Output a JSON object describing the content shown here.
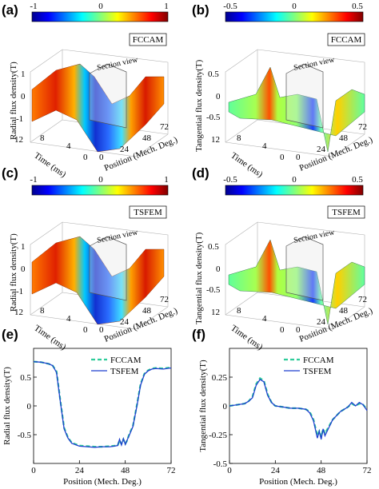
{
  "panels": {
    "a": {
      "label": "(a)",
      "method": "FCCAM",
      "colorbar_ticks": [
        "-1",
        "0",
        "1"
      ],
      "section": "Section view",
      "zlabel": "Radial flux density(T)",
      "ylabel": "Time (ms)",
      "xlabel": "Position (Mech. Deg.)",
      "zticks": [
        "1",
        "0",
        "-1"
      ],
      "yticks": [
        "12",
        "8",
        "4",
        "0"
      ],
      "xticks": [
        "0",
        "24",
        "48",
        "72"
      ]
    },
    "b": {
      "label": "(b)",
      "method": "FCCAM",
      "colorbar_ticks": [
        "-0.5",
        "0",
        "0.5"
      ],
      "section": "Section view",
      "zlabel": "Tangential flux density(T)",
      "ylabel": "Time (ms)",
      "xlabel": "Position (Mech. Deg.)",
      "zticks": [
        "0.5",
        "0",
        "-0.5"
      ],
      "yticks": [
        "12",
        "8",
        "4",
        "0"
      ],
      "xticks": [
        "0",
        "24",
        "48",
        "72"
      ]
    },
    "c": {
      "label": "(c)",
      "method": "TSFEM",
      "colorbar_ticks": [
        "-1",
        "0",
        "1"
      ],
      "section": "Section view",
      "zlabel": "Radial flux density(T)",
      "ylabel": "Time (ms)",
      "xlabel": "Position (Mech. Deg.)",
      "zticks": [
        "1",
        "0",
        "-1"
      ],
      "yticks": [
        "12",
        "8",
        "4",
        "0"
      ],
      "xticks": [
        "0",
        "24",
        "48",
        "72"
      ]
    },
    "d": {
      "label": "(d)",
      "method": "TSFEM",
      "colorbar_ticks": [
        "-0.5",
        "0",
        "0.5"
      ],
      "section": "Section view",
      "zlabel": "Tangential flux density(T)",
      "ylabel": "Time (ms)",
      "xlabel": "Position (Mech. Deg.)",
      "zticks": [
        "0.5",
        "0",
        "-0.5"
      ],
      "yticks": [
        "12",
        "8",
        "4",
        "0"
      ],
      "xticks": [
        "0",
        "24",
        "48",
        "72"
      ]
    },
    "e": {
      "label": "(e)"
    },
    "f": {
      "label": "(f)"
    }
  },
  "chart_data": [
    {
      "type": "line",
      "panel": "e",
      "xlabel": "Position (Mech. Deg.)",
      "ylabel": "Radial flux density(T)",
      "xlim": [
        0,
        72
      ],
      "ylim": [
        -1,
        1
      ],
      "xticks": [
        "0",
        "24",
        "48",
        "72"
      ],
      "yticks": [
        "0.5",
        "0",
        "-0.5"
      ],
      "series": [
        {
          "name": "FCCAM",
          "style": "dashed",
          "color": "#2ecc9a",
          "x": [
            0,
            4,
            8,
            10,
            12,
            14,
            16,
            18,
            20,
            24,
            28,
            32,
            36,
            40,
            44,
            45,
            46,
            47,
            48,
            49,
            50,
            52,
            54,
            56,
            58,
            60,
            62,
            64,
            68,
            72
          ],
          "y": [
            0.77,
            0.76,
            0.73,
            0.7,
            0.6,
            0.1,
            -0.38,
            -0.55,
            -0.64,
            -0.69,
            -0.7,
            -0.71,
            -0.71,
            -0.7,
            -0.69,
            -0.6,
            -0.66,
            -0.58,
            -0.66,
            -0.6,
            -0.5,
            -0.35,
            0.0,
            0.38,
            0.56,
            0.62,
            0.65,
            0.66,
            0.65,
            0.67
          ]
        },
        {
          "name": "TSFEM",
          "style": "solid",
          "color": "#1f3fcf",
          "x": [
            0,
            4,
            8,
            10,
            12,
            14,
            16,
            18,
            20,
            24,
            28,
            32,
            36,
            40,
            44,
            45,
            46,
            47,
            48,
            49,
            50,
            52,
            54,
            56,
            58,
            60,
            62,
            64,
            68,
            72
          ],
          "y": [
            0.77,
            0.76,
            0.73,
            0.7,
            0.58,
            0.08,
            -0.4,
            -0.56,
            -0.65,
            -0.7,
            -0.71,
            -0.72,
            -0.71,
            -0.71,
            -0.69,
            -0.58,
            -0.68,
            -0.57,
            -0.67,
            -0.59,
            -0.52,
            -0.36,
            -0.02,
            0.36,
            0.55,
            0.61,
            0.64,
            0.65,
            0.64,
            0.66
          ]
        }
      ]
    },
    {
      "type": "line",
      "panel": "f",
      "xlabel": "Position (Mech. Deg.)",
      "ylabel": "Tangential flux density(T)",
      "xlim": [
        0,
        72
      ],
      "ylim": [
        -0.5,
        0.5
      ],
      "xticks": [
        "0",
        "24",
        "48",
        "72"
      ],
      "yticks": [
        "0.25",
        "0",
        "-0.25",
        "-0.5"
      ],
      "series": [
        {
          "name": "FCCAM",
          "style": "dashed",
          "color": "#2ecc9a",
          "x": [
            0,
            4,
            8,
            10,
            12,
            14,
            16,
            18,
            20,
            22,
            24,
            28,
            32,
            36,
            40,
            42,
            44,
            46,
            47,
            48,
            49,
            50,
            52,
            54,
            58,
            62,
            64,
            66,
            68,
            70,
            72
          ],
          "y": [
            0.0,
            0.01,
            0.02,
            0.04,
            0.08,
            0.19,
            0.24,
            0.22,
            0.1,
            0.03,
            0.0,
            -0.01,
            -0.02,
            -0.02,
            -0.03,
            -0.05,
            -0.12,
            -0.26,
            -0.22,
            -0.27,
            -0.2,
            -0.24,
            -0.18,
            -0.12,
            -0.05,
            -0.01,
            0.02,
            0.0,
            0.02,
            0.01,
            -0.03
          ]
        },
        {
          "name": "TSFEM",
          "style": "solid",
          "color": "#1f3fcf",
          "x": [
            0,
            4,
            8,
            10,
            12,
            14,
            16,
            18,
            20,
            22,
            24,
            28,
            32,
            36,
            40,
            42,
            44,
            46,
            47,
            48,
            49,
            50,
            52,
            54,
            58,
            62,
            64,
            66,
            68,
            70,
            72
          ],
          "y": [
            0.0,
            0.01,
            0.02,
            0.04,
            0.07,
            0.18,
            0.23,
            0.21,
            0.09,
            0.03,
            0.0,
            -0.01,
            -0.02,
            -0.02,
            -0.03,
            -0.06,
            -0.13,
            -0.28,
            -0.22,
            -0.29,
            -0.2,
            -0.26,
            -0.19,
            -0.12,
            -0.05,
            -0.01,
            0.03,
            0.0,
            0.03,
            0.01,
            -0.04
          ]
        }
      ]
    }
  ]
}
